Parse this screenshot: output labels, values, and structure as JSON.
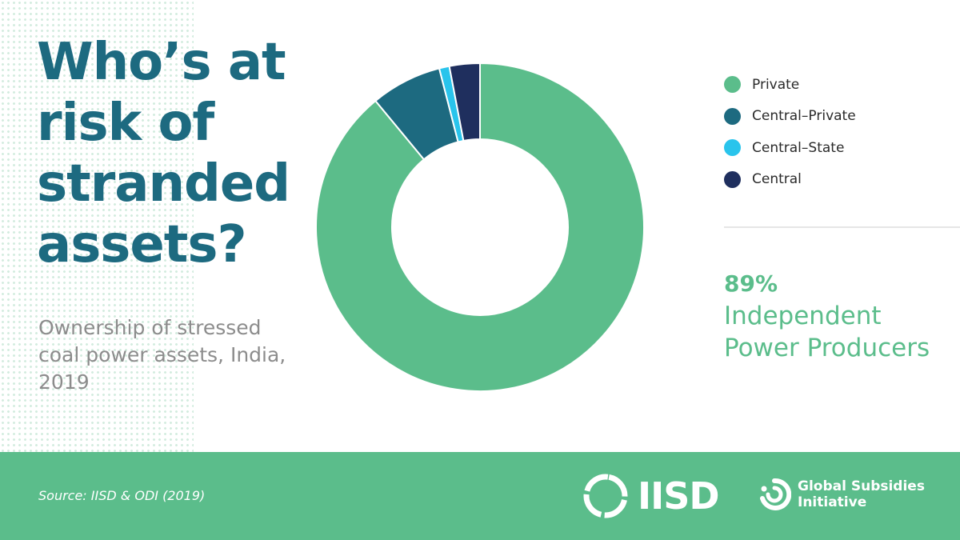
{
  "title": "Who’s at risk of stranded assets?",
  "subtitle": "Ownership of stressed coal power assets, India, 2019",
  "colors": {
    "title": "#1d6a80",
    "subtitle": "#8c8c8c",
    "accent": "#5bbd8b",
    "footer": "#5bbd8b"
  },
  "chart_data": {
    "type": "pie",
    "variant": "donut",
    "title": "Ownership of stressed coal power assets, India, 2019",
    "slices": [
      {
        "label": "Private",
        "value": 89,
        "color": "#5bbd8b"
      },
      {
        "label": "Central–Private",
        "value": 7,
        "color": "#1d6a80"
      },
      {
        "label": "Central–State",
        "value": 1,
        "color": "#29c4ec"
      },
      {
        "label": "Central",
        "value": 3,
        "color": "#1f2f5e"
      }
    ],
    "legend_position": "right"
  },
  "callout": {
    "value": "89%",
    "label": "Independent Power Producers"
  },
  "footer": {
    "source": "Source: IISD & ODI (2019)",
    "iisd_logo_text": "IISD",
    "gsi_logo_line1": "Global Subsidies",
    "gsi_logo_line2": "Initiative",
    "logo_mark_icon": "iisd-ring-icon",
    "gsi_mark_icon": "gsi-swirl-icon"
  }
}
